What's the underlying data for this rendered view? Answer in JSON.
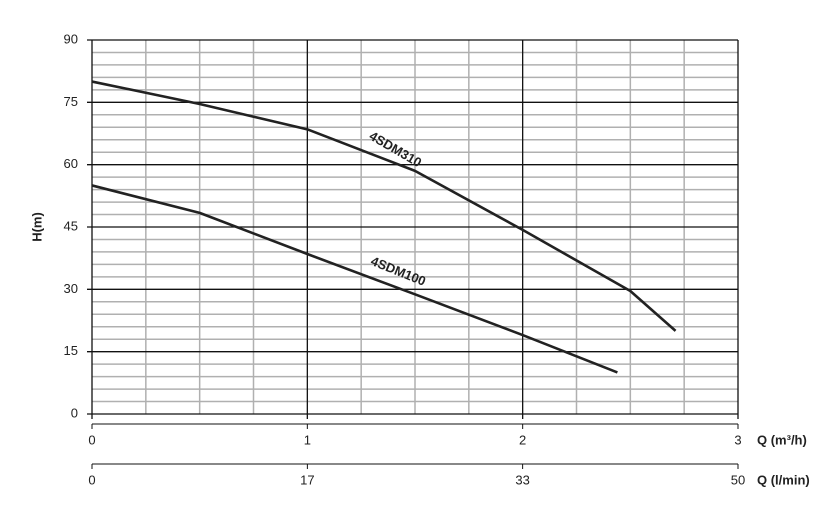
{
  "chart_data": {
    "type": "line",
    "ylabel": "H(m)",
    "xlabel": "Q (m³/h)",
    "x2label": "Q (l/min)",
    "xlim": [
      0,
      3
    ],
    "xticks": [
      0,
      1,
      2,
      3
    ],
    "x2lim": [
      0,
      50
    ],
    "x2ticks": [
      0,
      {
        "value": 16.67,
        "label": "17"
      },
      {
        "value": 33.33,
        "label": "33"
      },
      50
    ],
    "ylim": [
      0,
      90
    ],
    "yticks": [
      0,
      15,
      30,
      45,
      60,
      75,
      90
    ],
    "grid": true,
    "minor_grid": {
      "x": 4,
      "y": 5
    },
    "series": [
      {
        "name": "4SDM310",
        "color": "#222222",
        "x": [
          0,
          0.5,
          1,
          1.5,
          2,
          2.5,
          2.71
        ],
        "values": [
          80,
          74.6,
          68.5,
          58.5,
          44.3,
          29.6,
          20
        ]
      },
      {
        "name": "4SDM100",
        "color": "#222222",
        "x": [
          0,
          0.5,
          1,
          1.5,
          2,
          2.44
        ],
        "values": [
          55,
          48.4,
          38.5,
          28.8,
          19,
          10
        ]
      }
    ]
  }
}
